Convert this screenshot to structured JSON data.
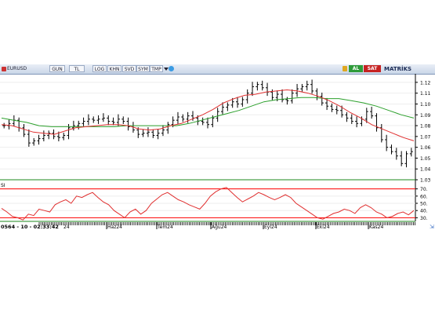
{
  "toolbar": {
    "symbol": "EURUSD",
    "buttons": [
      "GUN",
      "TL",
      "LOG",
      "KHN",
      "SVD",
      "SYM",
      "TMP"
    ],
    "al": "AL",
    "sat": "SAT",
    "matriks": "MATRİKS"
  },
  "status_text": "0564 - 10 - 02:33:42",
  "colors": {
    "grid": "#eeeeee",
    "candle": "#000000",
    "ma_red": "#e03030",
    "ma_green": "#2ca02c",
    "rsi": "#e03030",
    "rsi_bands": "#ff0000"
  },
  "chart_data": [
    {
      "type": "candlestick",
      "title": "",
      "yticks": [
        1.03,
        1.04,
        1.05,
        1.06,
        1.07,
        1.08,
        1.09,
        1.1,
        1.11,
        1.12
      ],
      "ylim": [
        1.03,
        1.125
      ],
      "xtick_labels": [
        "Haz24",
        "Tem24",
        "Ağu24",
        "Eyl24",
        "Eki24",
        "Kas24"
      ],
      "close": [
        1.08,
        1.082,
        1.085,
        1.078,
        1.072,
        1.064,
        1.066,
        1.068,
        1.071,
        1.073,
        1.07,
        1.069,
        1.071,
        1.078,
        1.08,
        1.082,
        1.084,
        1.086,
        1.085,
        1.086,
        1.087,
        1.084,
        1.083,
        1.086,
        1.084,
        1.079,
        1.076,
        1.072,
        1.073,
        1.074,
        1.071,
        1.073,
        1.076,
        1.081,
        1.085,
        1.088,
        1.086,
        1.089,
        1.087,
        1.084,
        1.083,
        1.081,
        1.087,
        1.093,
        1.097,
        1.099,
        1.102,
        1.1,
        1.104,
        1.11,
        1.116,
        1.118,
        1.115,
        1.111,
        1.106,
        1.109,
        1.104,
        1.103,
        1.11,
        1.114,
        1.116,
        1.118,
        1.112,
        1.107,
        1.101,
        1.098,
        1.095,
        1.094,
        1.09,
        1.087,
        1.084,
        1.082,
        1.086,
        1.093,
        1.089,
        1.078,
        1.067,
        1.06,
        1.056,
        1.052,
        1.045,
        1.054,
        1.056
      ],
      "ma_red": [
        1.081,
        1.08,
        1.077,
        1.074,
        1.073,
        1.072,
        1.075,
        1.078,
        1.079,
        1.08,
        1.081,
        1.081,
        1.08,
        1.077,
        1.076,
        1.077,
        1.08,
        1.082,
        1.086,
        1.09,
        1.095,
        1.101,
        1.105,
        1.108,
        1.109,
        1.111,
        1.112,
        1.113,
        1.112,
        1.11,
        1.107,
        1.103,
        1.098,
        1.092,
        1.087,
        1.081,
        1.077,
        1.073,
        1.069,
        1.066
      ],
      "ma_green": [
        1.087,
        1.085,
        1.083,
        1.08,
        1.079,
        1.079,
        1.079,
        1.079,
        1.079,
        1.079,
        1.08,
        1.08,
        1.08,
        1.08,
        1.08,
        1.082,
        1.085,
        1.088,
        1.091,
        1.094,
        1.098,
        1.102,
        1.104,
        1.105,
        1.106,
        1.106,
        1.105,
        1.105,
        1.103,
        1.101,
        1.098,
        1.094,
        1.09,
        1.087
      ]
    },
    {
      "type": "line",
      "title": "",
      "label": "SI",
      "yticks": [
        30,
        40,
        50,
        60,
        70
      ],
      "ylim": [
        25,
        75
      ],
      "bands": [
        30,
        70
      ],
      "values": [
        43,
        38,
        32,
        30,
        27,
        35,
        33,
        42,
        40,
        38,
        48,
        52,
        55,
        50,
        60,
        58,
        62,
        65,
        58,
        52,
        48,
        40,
        35,
        30,
        38,
        42,
        35,
        40,
        50,
        56,
        62,
        65,
        60,
        55,
        52,
        48,
        45,
        42,
        50,
        60,
        66,
        70,
        72,
        65,
        58,
        52,
        56,
        60,
        65,
        62,
        58,
        55,
        58,
        62,
        58,
        50,
        45,
        40,
        35,
        30,
        28,
        32,
        36,
        38,
        42,
        40,
        36,
        44,
        48,
        44,
        38,
        35,
        30,
        32,
        36,
        38,
        34,
        40
      ]
    }
  ]
}
